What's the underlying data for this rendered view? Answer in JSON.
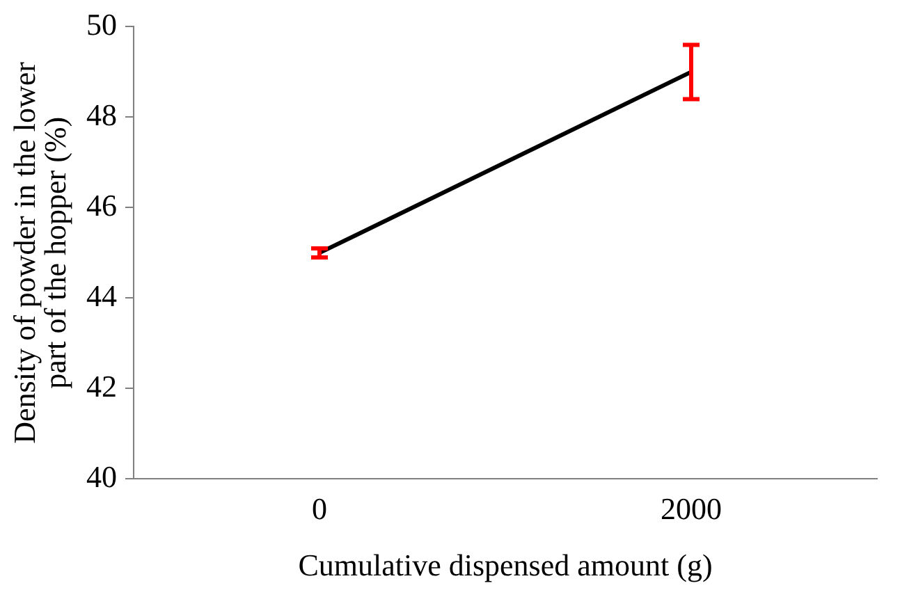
{
  "chart_data": {
    "type": "line",
    "xlabel": "Cumulative dispensed amount (g)",
    "ylabel": "Density of powder in the lower part of the hopper (%)",
    "categories": [
      "0",
      "2000"
    ],
    "series": [
      {
        "color": "#000000",
        "values": [
          45,
          49
        ],
        "errors": [
          0.1,
          0.6
        ]
      }
    ],
    "ylim": [
      40,
      50
    ],
    "yticks": [
      40,
      42,
      44,
      46,
      48,
      50
    ],
    "grid": false,
    "legend": false,
    "marker": "none",
    "line_style": "solid"
  }
}
